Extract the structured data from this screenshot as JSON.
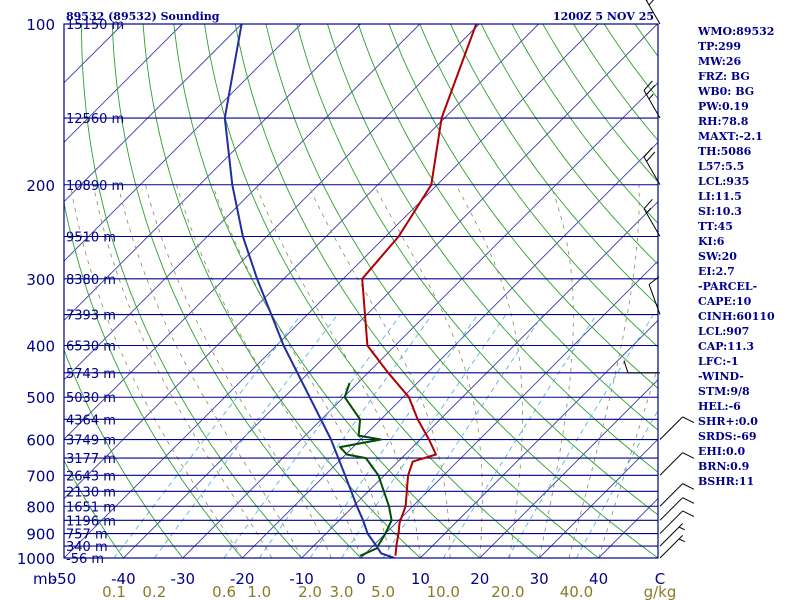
{
  "header": {
    "station": "89532 (89532) Sounding",
    "datetime": "1200Z  5 NOV 25"
  },
  "indices": [
    "WMO:89532",
    "TP:299",
    "MW:26",
    "FRZ: BG",
    "WB0: BG",
    "PW:0.19",
    "RH:78.8",
    "MAXT:-2.1",
    "TH:5086",
    "L57:5.5",
    "LCL:935",
    "LI:11.5",
    "SI:10.3",
    "TT:45",
    "KI:6",
    "SW:20",
    "EI:2.7",
    "-PARCEL-",
    "CAPE:10",
    "CINH:60110",
    "LCL:907",
    "CAP:11.3",
    "LFC:-1",
    "-WIND-",
    "STM:9/8",
    "HEL:-6",
    "SHR+:0.0",
    "SRDS:-69",
    "EHI:0.0",
    "BRN:0.9",
    "BSHR:11"
  ],
  "colors": {
    "isobar": "#00008b",
    "isotherm": "#3a3aa8",
    "dry_adiabat": "#2ca02c",
    "moist_adiabat": "#8a8a60",
    "mixing_ratio": "#5ab4d8",
    "parcel": "#1f2fa0",
    "temperature": "#b00000",
    "dewpoint": "#004d00",
    "mixing_label": "#8a7a28"
  },
  "chart_data": {
    "type": "line",
    "subtype": "skew-T log-p sounding",
    "xlabel": "C",
    "ylabel": "mb",
    "x_range_c": [
      -50,
      50
    ],
    "p_range_mb": [
      1000,
      100
    ],
    "pressure_ticks": [
      {
        "p": 100,
        "label": "100"
      },
      {
        "p": 200,
        "label": "200"
      },
      {
        "p": 300,
        "label": "300"
      },
      {
        "p": 400,
        "label": "400"
      },
      {
        "p": 500,
        "label": "500"
      },
      {
        "p": 600,
        "label": "600"
      },
      {
        "p": 700,
        "label": "700"
      },
      {
        "p": 800,
        "label": "800"
      },
      {
        "p": 900,
        "label": "900"
      },
      {
        "p": 1000,
        "label": "1000"
      }
    ],
    "temp_ticks": [
      {
        "t": -50,
        "label": "-50"
      },
      {
        "t": -40,
        "label": "-40"
      },
      {
        "t": -30,
        "label": "-30"
      },
      {
        "t": -20,
        "label": "-20"
      },
      {
        "t": -10,
        "label": "-10"
      },
      {
        "t": 0,
        "label": "0"
      },
      {
        "t": 10,
        "label": "10"
      },
      {
        "t": 20,
        "label": "20"
      },
      {
        "t": 30,
        "label": "30"
      },
      {
        "t": 40,
        "label": "40"
      }
    ],
    "height_labels": [
      {
        "p": 100,
        "label": "15150 m"
      },
      {
        "p": 150,
        "label": "12560 m"
      },
      {
        "p": 200,
        "label": "10890 m"
      },
      {
        "p": 250,
        "label": "9510 m"
      },
      {
        "p": 300,
        "label": "8380 m"
      },
      {
        "p": 350,
        "label": "7393 m"
      },
      {
        "p": 400,
        "label": "6530 m"
      },
      {
        "p": 450,
        "label": "5743 m"
      },
      {
        "p": 500,
        "label": "5030 m"
      },
      {
        "p": 550,
        "label": "4364 m"
      },
      {
        "p": 600,
        "label": "3749 m"
      },
      {
        "p": 650,
        "label": "3177 m"
      },
      {
        "p": 700,
        "label": "2643 m"
      },
      {
        "p": 750,
        "label": "2130 m"
      },
      {
        "p": 800,
        "label": "1651 m"
      },
      {
        "p": 850,
        "label": "1196 m"
      },
      {
        "p": 900,
        "label": "757 m"
      },
      {
        "p": 950,
        "label": "340 m"
      },
      {
        "p": 1000,
        "label": "-56 m"
      }
    ],
    "mixing_ratio_labels": [
      {
        "w": 0.1,
        "label": "0.1"
      },
      {
        "w": 0.2,
        "label": "0.2"
      },
      {
        "w": 0.6,
        "label": "0.6"
      },
      {
        "w": 1.0,
        "label": "1.0"
      },
      {
        "w": 2.0,
        "label": "2.0"
      },
      {
        "w": 3.0,
        "label": "3.0"
      },
      {
        "w": 5.0,
        "label": "5.0"
      },
      {
        "w": 10.0,
        "label": "10.0"
      },
      {
        "w": 20.0,
        "label": "20.0"
      },
      {
        "w": 40.0,
        "label": "40.0"
      }
    ],
    "mixing_unit": "g/kg",
    "series": [
      {
        "name": "Temperature",
        "p": [
          990,
          940,
          900,
          860,
          800,
          700,
          660,
          640,
          600,
          550,
          500,
          450,
          400,
          300,
          250,
          200,
          150,
          100
        ],
        "t": [
          5.4,
          3.6,
          2.2,
          0.6,
          -1.2,
          -6.0,
          -7.5,
          -4.8,
          -8.5,
          -13.8,
          -19.0,
          -26.6,
          -34.7,
          -46.8,
          -47.8,
          -51.0,
          -60.5,
          -70.5
        ]
      },
      {
        "name": "Dewpoint",
        "p": [
          990,
          960,
          900,
          850,
          800,
          700,
          650,
          640,
          620,
          600,
          590,
          550,
          500,
          470
        ],
        "t": [
          -0.5,
          1.0,
          0.0,
          -1.2,
          -4.0,
          -11.0,
          -16.0,
          -19.8,
          -22.2,
          -16.6,
          -21.0,
          -23.5,
          -29.8,
          -31.4
        ]
      },
      {
        "name": "Parcel",
        "p": [
          1000,
          980,
          950,
          900,
          850,
          800,
          700,
          600,
          500,
          400,
          300,
          250,
          200,
          150,
          100
        ],
        "t": [
          5.6,
          2.6,
          0.6,
          -3.0,
          -6.0,
          -9.4,
          -16.6,
          -25.0,
          -35.7,
          -48.8,
          -64.5,
          -74.0,
          -84.5,
          -97.0,
          -110.0
        ]
      }
    ],
    "wind_barbs": [
      {
        "p": 100,
        "dir": 330,
        "kt": 30
      },
      {
        "p": 150,
        "dir": 330,
        "kt": 25
      },
      {
        "p": 200,
        "dir": 330,
        "kt": 20
      },
      {
        "p": 250,
        "dir": 330,
        "kt": 15
      },
      {
        "p": 350,
        "dir": 340,
        "kt": 10
      },
      {
        "p": 450,
        "dir": 270,
        "kt": 10
      },
      {
        "p": 600,
        "dir": 45,
        "kt": 10
      },
      {
        "p": 700,
        "dir": 45,
        "kt": 10
      },
      {
        "p": 800,
        "dir": 45,
        "kt": 10
      },
      {
        "p": 850,
        "dir": 45,
        "kt": 10
      },
      {
        "p": 900,
        "dir": 45,
        "kt": 10
      },
      {
        "p": 950,
        "dir": 45,
        "kt": 5
      },
      {
        "p": 1000,
        "dir": 45,
        "kt": 5
      }
    ]
  }
}
